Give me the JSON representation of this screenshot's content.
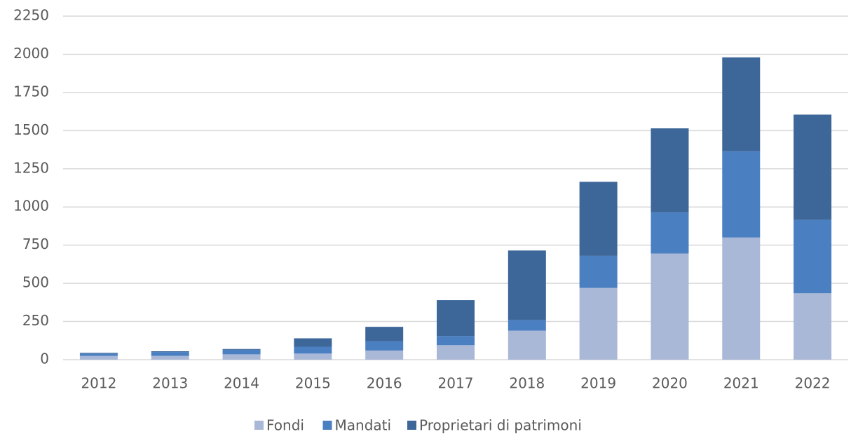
{
  "chart_data": {
    "type": "stacked_bar",
    "categories": [
      "2012",
      "2013",
      "2014",
      "2015",
      "2016",
      "2017",
      "2018",
      "2019",
      "2020",
      "2021",
      "2022"
    ],
    "series": [
      {
        "name": "Fondi",
        "color": "#a9b8d6",
        "values": [
          25,
          25,
          35,
          40,
          60,
          95,
          190,
          470,
          695,
          800,
          435
        ]
      },
      {
        "name": "Mandati",
        "color": "#4a7fc1",
        "values": [
          15,
          25,
          30,
          45,
          60,
          60,
          70,
          210,
          270,
          565,
          480
        ]
      },
      {
        "name": "Proprietari di patrimoni",
        "color": "#3d6699",
        "values": [
          5,
          5,
          5,
          55,
          95,
          235,
          455,
          485,
          550,
          615,
          690
        ]
      }
    ],
    "ylim": [
      0,
      2250
    ],
    "yticks": [
      0,
      250,
      500,
      750,
      1000,
      1250,
      1500,
      1750,
      2000,
      2250
    ],
    "grid": true,
    "legend": "bottom"
  }
}
